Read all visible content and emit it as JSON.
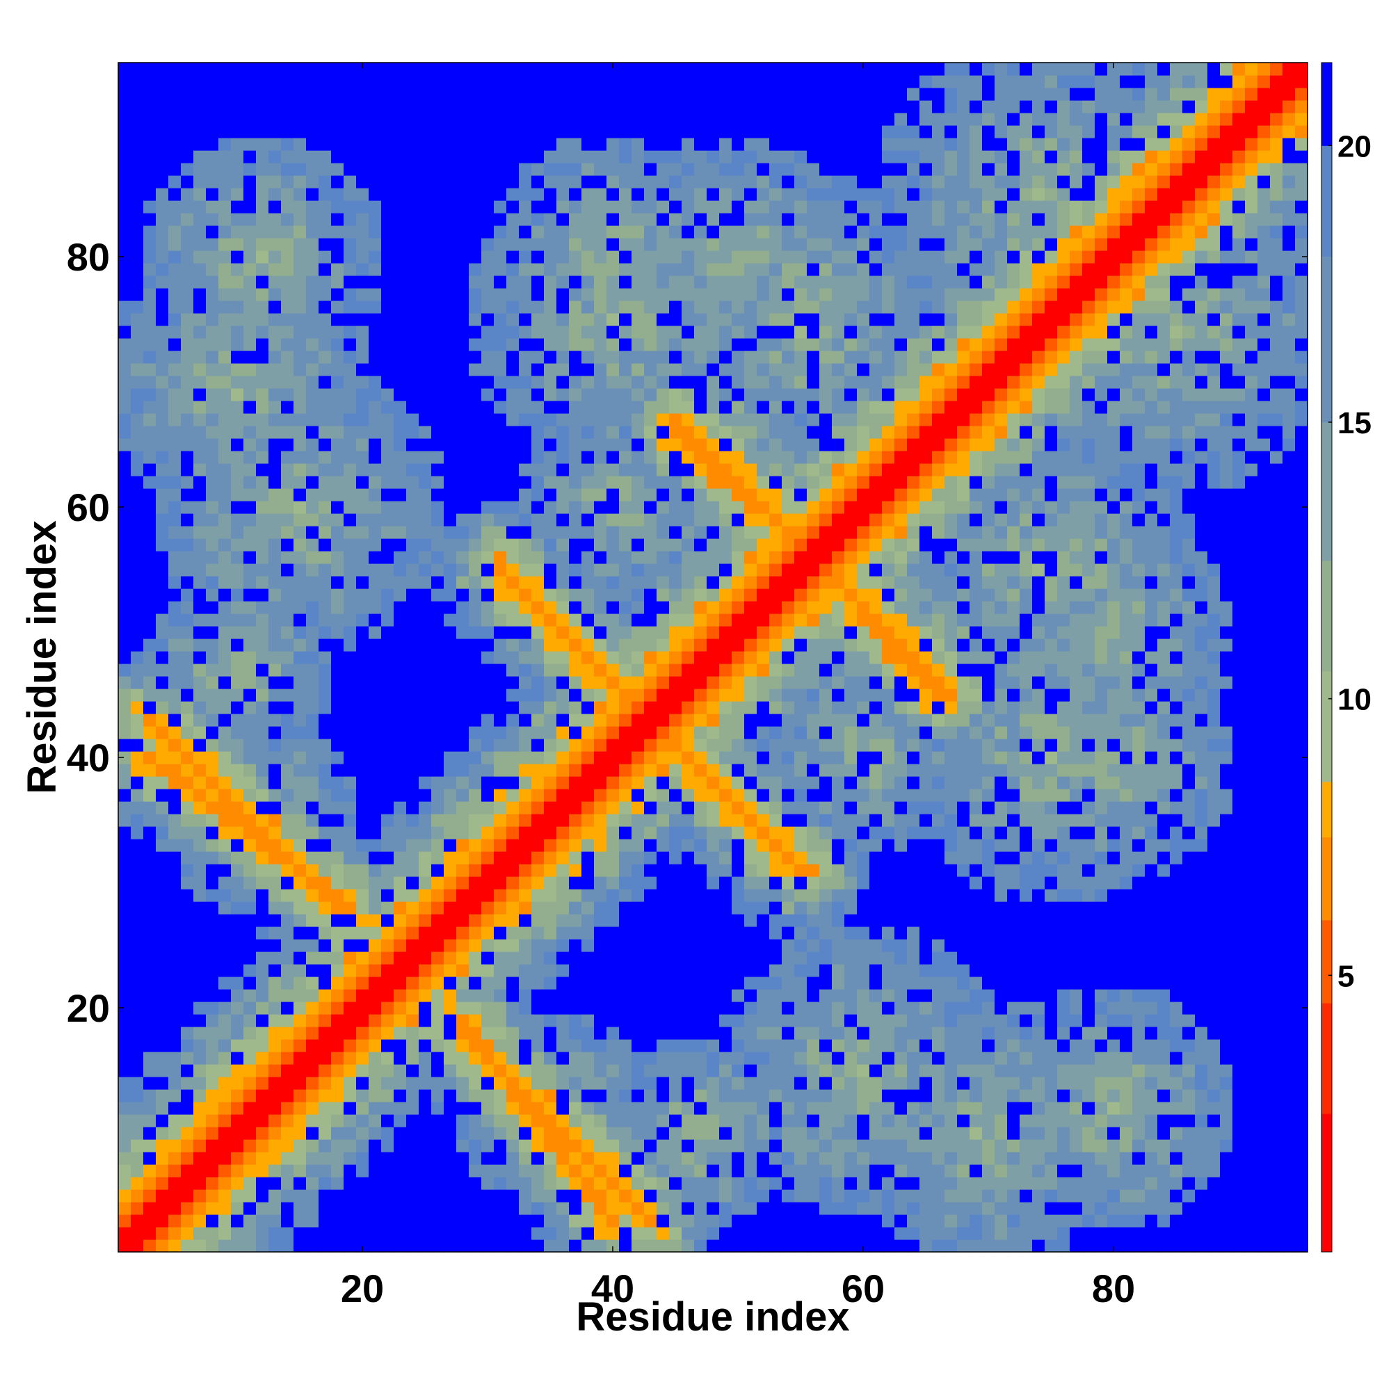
{
  "chart_data": {
    "type": "heatmap",
    "title": "",
    "xlabel": "Residue index",
    "ylabel": "Residue index",
    "n_residues": 95,
    "xlim": [
      0.5,
      95.5
    ],
    "ylim": [
      0.5,
      95.5
    ],
    "x_ticks": [
      20,
      40,
      60,
      80
    ],
    "y_ticks": [
      20,
      40,
      60,
      80
    ],
    "x_tick_labels": [
      "20",
      "40",
      "60",
      "80"
    ],
    "y_tick_labels": [
      "20",
      "40",
      "60",
      "80"
    ],
    "value_range": [
      0,
      21.5
    ],
    "saturation_value": 21.5,
    "colorbar": {
      "ticks": [
        5,
        10,
        15,
        20
      ],
      "tick_labels": [
        "5",
        "10",
        "15",
        "20"
      ],
      "colors": [
        {
          "from": 0.0,
          "to": 2.5,
          "color": "#ff0000"
        },
        {
          "from": 2.5,
          "to": 4.5,
          "color": "#ff2a00"
        },
        {
          "from": 4.5,
          "to": 6.0,
          "color": "#ff5a00"
        },
        {
          "from": 6.0,
          "to": 7.5,
          "color": "#ff8c00"
        },
        {
          "from": 7.5,
          "to": 8.5,
          "color": "#ffaa00"
        },
        {
          "from": 8.5,
          "to": 10.5,
          "color": "#9fb88c"
        },
        {
          "from": 10.5,
          "to": 12.5,
          "color": "#93ae8e"
        },
        {
          "from": 12.5,
          "to": 15.0,
          "color": "#7f9fa6"
        },
        {
          "from": 15.0,
          "to": 18.0,
          "color": "#6b90b8"
        },
        {
          "from": 18.0,
          "to": 20.0,
          "color": "#5a85c6"
        },
        {
          "from": 20.0,
          "to": 21.5,
          "color": "#0000ff"
        }
      ]
    },
    "contact_bands": [
      {
        "name": "diagonal",
        "x_range": [
          1,
          95
        ],
        "y_range": [
          1,
          95
        ]
      },
      {
        "name": "antiparallel 1",
        "x_range": [
          28,
          40
        ],
        "y_range": [
          3,
          19
        ]
      },
      {
        "name": "antiparallel 2",
        "x_range": [
          3,
          18
        ],
        "y_range": [
          28,
          43
        ]
      },
      {
        "name": "antiparallel 3",
        "x_range": [
          43,
          55
        ],
        "y_range": [
          31,
          43
        ]
      },
      {
        "name": "antiparallel 4",
        "x_range": [
          31,
          43
        ],
        "y_range": [
          43,
          55
        ]
      },
      {
        "name": "antiparallel 5",
        "x_range": [
          57,
          66
        ],
        "y_range": [
          45,
          55
        ]
      },
      {
        "name": "antiparallel 6",
        "x_range": [
          45,
          55
        ],
        "y_range": [
          57,
          67
        ]
      }
    ]
  }
}
